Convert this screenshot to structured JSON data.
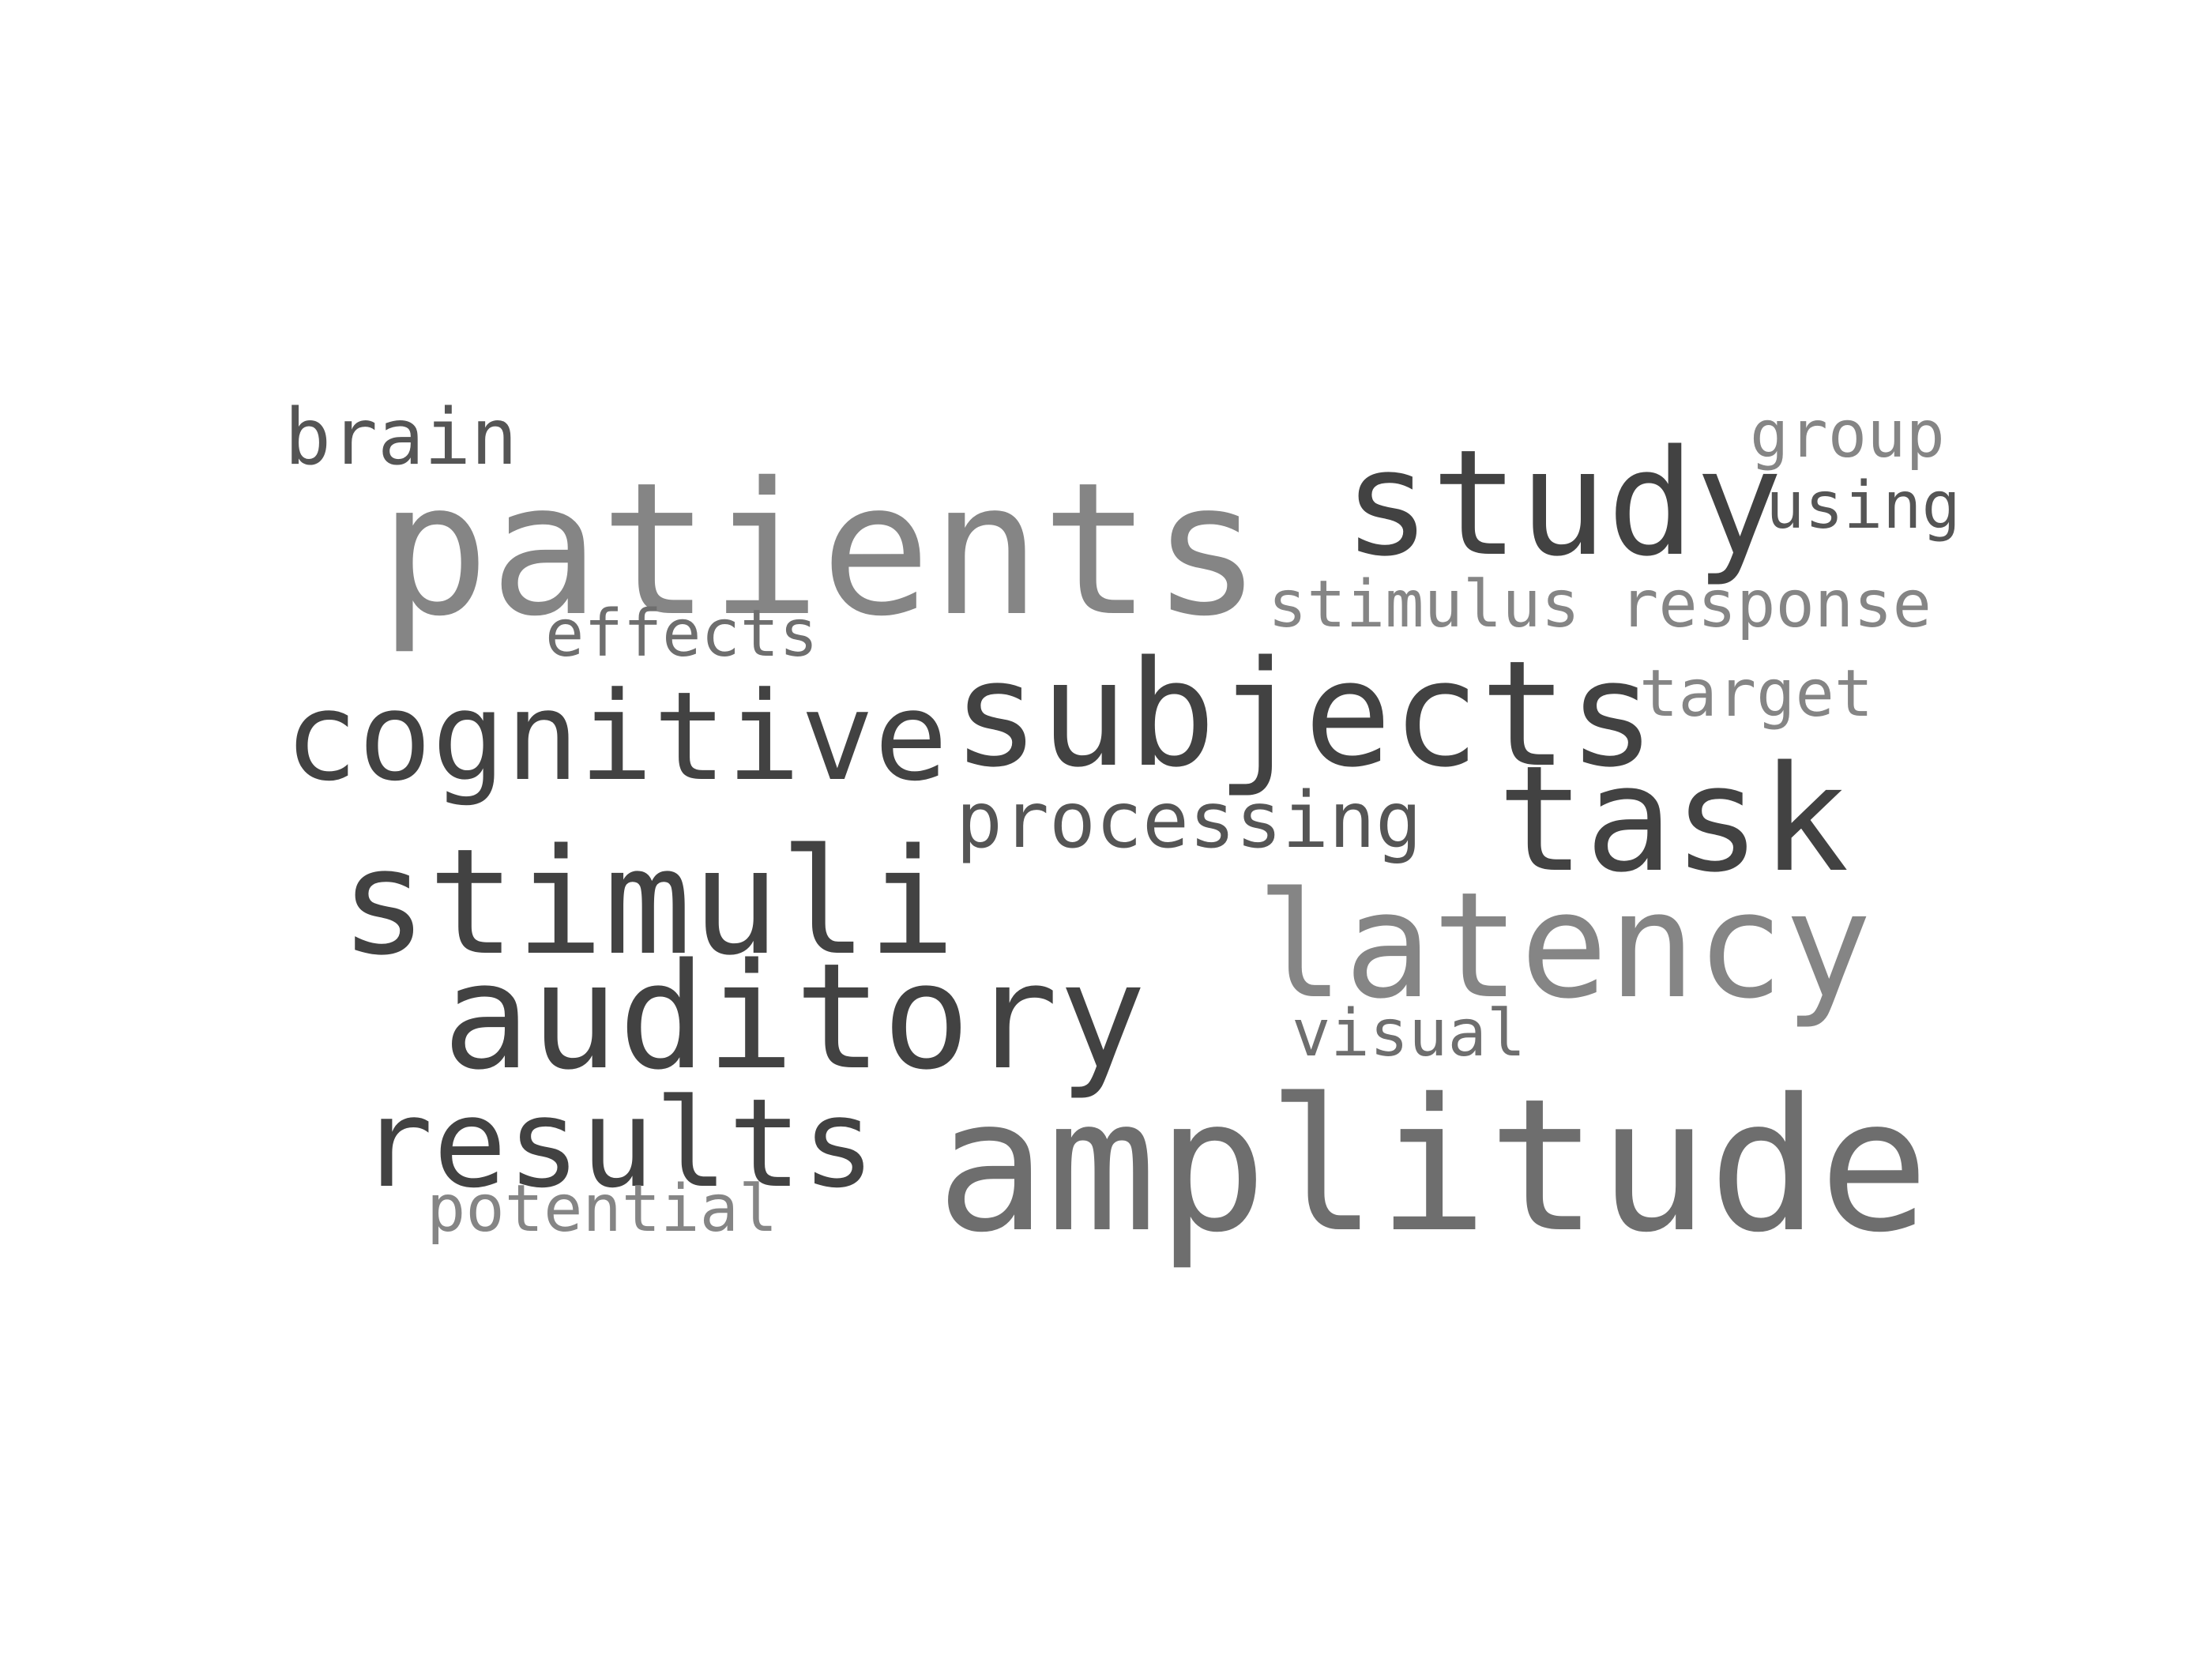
{
  "words": {
    "brain": "brain",
    "patients": "patients",
    "study": "study",
    "group": "group",
    "using": "using",
    "stimulus": "stimulus",
    "response": "response",
    "effects": "effects",
    "subjects": "subjects",
    "target": "target",
    "cognitive": "cognitive",
    "processing": "processing",
    "task": "task",
    "stimuli": "stimuli",
    "latency": "latency",
    "auditory": "auditory",
    "visual": "visual",
    "results": "results",
    "amplitude": "amplitude",
    "potential": "potential"
  },
  "colors": {
    "background": "#ffffff",
    "dark": "#424242",
    "mid": "#555555",
    "grey": "#6e6e6e",
    "light": "#858585"
  }
}
